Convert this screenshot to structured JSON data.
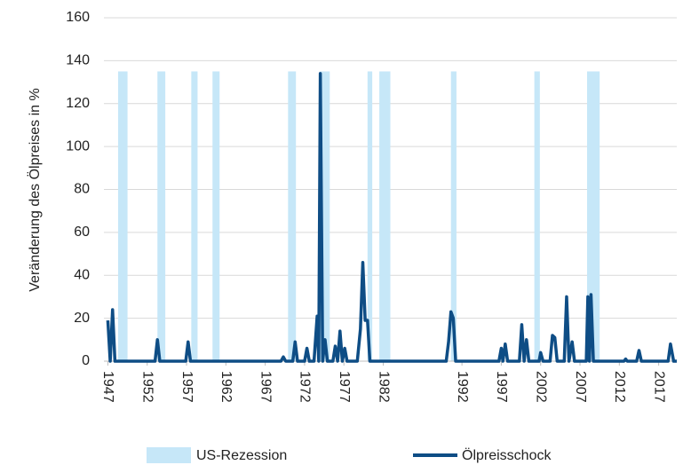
{
  "chart_data": {
    "type": "line",
    "ylabel": "Veränderung des Ölpreises in %",
    "xlim": [
      1946.5,
      2019.3
    ],
    "xticks": [
      1947,
      1952,
      1957,
      1962,
      1967,
      1972,
      1977,
      1982,
      1992,
      1997,
      2002,
      2007,
      2012,
      2017
    ],
    "ylim": [
      0,
      160
    ],
    "yticks": [
      0,
      20,
      40,
      60,
      80,
      100,
      120,
      140,
      160
    ],
    "grid": true,
    "legend": "bottom",
    "bands": {
      "name": "US-Rezession",
      "color": "#c6e7f8",
      "x_ranges": [
        [
          1948.3,
          1949.5
        ],
        [
          1953.3,
          1954.3
        ],
        [
          1957.6,
          1958.4
        ],
        [
          1960.3,
          1961.2
        ],
        [
          1969.9,
          1970.9
        ],
        [
          1973.9,
          1975.2
        ],
        [
          1980.0,
          1980.6
        ],
        [
          1981.5,
          1982.9
        ],
        [
          1990.6,
          1991.3
        ],
        [
          2001.2,
          2001.9
        ],
        [
          2007.9,
          2009.5
        ]
      ],
      "values": [
        135,
        135,
        135,
        135,
        135,
        135,
        135,
        135,
        135,
        135,
        135
      ]
    },
    "series": [
      {
        "name": "Ölpreisschock",
        "color": "#0e4d85",
        "x": [
          1947.0,
          1947.3,
          1947.6,
          1947.9,
          1953.0,
          1953.3,
          1953.6,
          1956.9,
          1957.2,
          1957.5,
          1969.0,
          1969.3,
          1969.6,
          1970.5,
          1970.8,
          1971.1,
          1972.0,
          1972.3,
          1972.6,
          1973.2,
          1973.6,
          1973.8,
          1974.0,
          1974.3,
          1974.6,
          1974.9,
          1975.6,
          1975.9,
          1976.2,
          1976.5,
          1976.8,
          1977.1,
          1977.4,
          1978.7,
          1979.1,
          1979.4,
          1979.7,
          1980.0,
          1980.3,
          1990.0,
          1990.3,
          1990.6,
          1990.9,
          1991.2,
          1996.7,
          1997.0,
          1997.2,
          1997.5,
          1997.8,
          1999.3,
          1999.6,
          1999.9,
          2000.2,
          2000.5,
          2001.8,
          2002.0,
          2002.3,
          2003.2,
          2003.5,
          2003.8,
          2004.1,
          2005.0,
          2005.3,
          2005.6,
          2006.0,
          2006.3,
          2007.8,
          2008.0,
          2008.2,
          2008.4,
          2008.7,
          2012.6,
          2012.8,
          2013.0,
          2014.2,
          2014.5,
          2014.8,
          2018.2,
          2018.5,
          2018.9,
          2019.3
        ],
        "values": [
          19,
          0,
          24,
          0,
          0,
          10,
          0,
          0,
          9,
          0,
          0,
          2,
          0,
          0,
          9,
          0,
          0,
          6,
          0,
          0,
          21,
          0,
          134,
          0,
          10,
          0,
          0,
          7,
          0,
          14,
          0,
          6,
          0,
          0,
          15,
          46,
          19,
          19,
          0,
          0,
          9,
          23,
          20,
          0,
          0,
          6,
          0,
          8,
          0,
          0,
          17,
          0,
          10,
          0,
          0,
          4,
          0,
          0,
          12,
          11,
          0,
          0,
          30,
          0,
          9,
          0,
          0,
          30,
          0,
          31,
          0,
          0,
          1,
          0,
          0,
          5,
          0,
          0,
          8,
          0,
          0
        ]
      }
    ]
  }
}
